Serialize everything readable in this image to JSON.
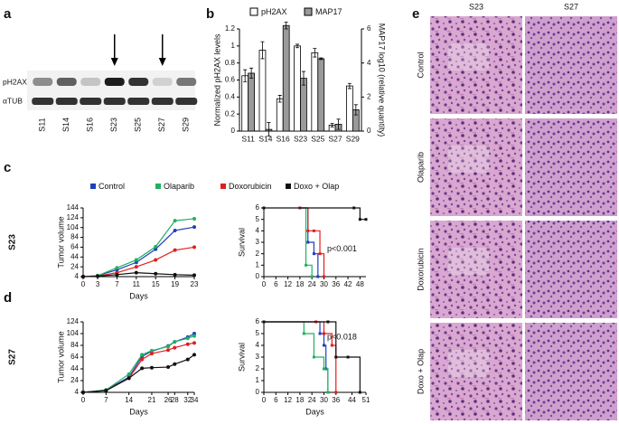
{
  "panel_labels": [
    "a",
    "b",
    "c",
    "d",
    "e"
  ],
  "blot": {
    "rows": [
      "pH2AX",
      "αTUB"
    ],
    "samples": [
      "S11",
      "S14",
      "S16",
      "S23",
      "S25",
      "S27",
      "S29"
    ]
  },
  "histology": {
    "columns": [
      "S23",
      "S27"
    ],
    "rows": [
      "Control",
      "Olaparib",
      "Doxorubicin",
      "Doxo + Olap"
    ]
  },
  "chart_data": [
    {
      "type": "bar",
      "ylabel": "Normalized pH2AX levels",
      "y2label": "MAP17 log10 (relative quantity)",
      "categories": [
        "S11",
        "S14",
        "S16",
        "S23",
        "S25",
        "S27",
        "S29"
      ],
      "series": [
        {
          "name": "pH2AX",
          "color": "#ffffff",
          "values": [
            0.65,
            0.95,
            0.38,
            1.0,
            0.92,
            0.07,
            0.53
          ],
          "errors": [
            0.07,
            0.1,
            0.04,
            0.02,
            0.05,
            0.02,
            0.03
          ]
        },
        {
          "name": "MAP17",
          "color": "#9a9a9a",
          "axis": "y2",
          "values": [
            3.4,
            0.1,
            6.2,
            3.1,
            4.25,
            0.4,
            1.25
          ],
          "errors": [
            0.3,
            0.4,
            0.2,
            0.4,
            0.05,
            0.3,
            0.3
          ]
        }
      ],
      "ylim": [
        0,
        1.2
      ],
      "yticks": [
        0.0,
        0.2,
        0.4,
        0.6,
        0.8,
        1.0,
        1.2
      ],
      "y2lim": [
        0,
        6
      ],
      "y2ticks": [
        0,
        2,
        4,
        6
      ],
      "legend": "top"
    },
    {
      "type": "line",
      "side_label": "S23",
      "ylabel": "Tumor volume",
      "xlabel": "Days",
      "x": [
        0,
        3,
        7,
        11,
        15,
        19,
        23
      ],
      "series": [
        {
          "name": "Control",
          "color": "#1f3fbf",
          "values": [
            4,
            6,
            18,
            33,
            60,
            98,
            105
          ]
        },
        {
          "name": "Olaparib",
          "color": "#22b060",
          "values": [
            4,
            6,
            22,
            38,
            65,
            118,
            122
          ]
        },
        {
          "name": "Doxorubicin",
          "color": "#e0201f",
          "values": [
            4,
            5,
            12,
            24,
            38,
            58,
            64
          ]
        },
        {
          "name": "Doxo + Olap",
          "color": "#111111",
          "values": [
            4,
            5,
            8,
            12,
            10,
            8,
            7
          ]
        }
      ],
      "xlim": [
        0,
        23
      ],
      "xticks": [
        0,
        3,
        7,
        11,
        15,
        19,
        23
      ],
      "ylim": [
        4,
        144
      ],
      "yticks": [
        4,
        24,
        44,
        64,
        84,
        104,
        124,
        144
      ],
      "legend": "top"
    },
    {
      "type": "line",
      "step": true,
      "ylabel": "Survival",
      "annotation": "p<0.001",
      "series": [
        {
          "color": "#1f3fbf",
          "x": [
            18,
            22,
            25,
            27
          ],
          "values": [
            6,
            3,
            2,
            0
          ]
        },
        {
          "color": "#22b060",
          "x": [
            18,
            21,
            24
          ],
          "values": [
            6,
            1,
            0
          ]
        },
        {
          "color": "#e0201f",
          "x": [
            18,
            22,
            25,
            28,
            30
          ],
          "values": [
            6,
            4,
            4,
            2,
            0
          ]
        },
        {
          "color": "#111111",
          "x": [
            0,
            45,
            48,
            51
          ],
          "values": [
            6,
            6,
            5,
            5
          ]
        }
      ],
      "xlim": [
        0,
        51
      ],
      "xticks": [
        0,
        6,
        12,
        18,
        24,
        30,
        36,
        42,
        48
      ],
      "ylim": [
        0,
        6
      ],
      "yticks": [
        0,
        1,
        2,
        3,
        4,
        5,
        6
      ]
    },
    {
      "type": "line",
      "side_label": "S27",
      "ylabel": "Tumor volume",
      "xlabel": "Days",
      "x": [
        0,
        7,
        14,
        18,
        21,
        26,
        28,
        32,
        34
      ],
      "series": [
        {
          "color": "#1f3fbf",
          "values": [
            4,
            8,
            30,
            65,
            74,
            83,
            90,
            98,
            104
          ]
        },
        {
          "color": "#22b060",
          "values": [
            4,
            8,
            35,
            68,
            75,
            82,
            90,
            96,
            100
          ]
        },
        {
          "color": "#e0201f",
          "values": [
            4,
            7,
            28,
            60,
            70,
            76,
            80,
            86,
            88
          ]
        },
        {
          "color": "#111111",
          "values": [
            4,
            7,
            28,
            45,
            46,
            47,
            52,
            60,
            68
          ]
        }
      ],
      "xlim": [
        0,
        34
      ],
      "xticks": [
        0,
        7,
        14,
        21,
        26,
        28,
        32,
        34
      ],
      "ylim": [
        4,
        124
      ],
      "yticks": [
        4,
        24,
        44,
        64,
        84,
        104,
        124
      ]
    },
    {
      "type": "line",
      "step": true,
      "ylabel": "Survival",
      "xlabel": "Days",
      "annotation": "p<0.018",
      "series": [
        {
          "color": "#1f3fbf",
          "x": [
            0,
            28,
            30,
            31,
            32
          ],
          "values": [
            6,
            5,
            4,
            2,
            0
          ]
        },
        {
          "color": "#22b060",
          "x": [
            0,
            20,
            25,
            30,
            32
          ],
          "values": [
            6,
            5,
            3,
            2,
            0
          ]
        },
        {
          "color": "#e0201f",
          "x": [
            0,
            26,
            30,
            34,
            36
          ],
          "values": [
            6,
            6,
            5,
            4,
            0
          ]
        },
        {
          "color": "#111111",
          "x": [
            0,
            32,
            36,
            42,
            48
          ],
          "values": [
            6,
            6,
            3,
            3,
            0
          ]
        }
      ],
      "xlim": [
        0,
        51
      ],
      "xticks": [
        0,
        6,
        12,
        18,
        24,
        30,
        36,
        44,
        51
      ],
      "ylim": [
        0,
        6
      ],
      "yticks": [
        0,
        1,
        2,
        3,
        4,
        5,
        6
      ]
    }
  ]
}
